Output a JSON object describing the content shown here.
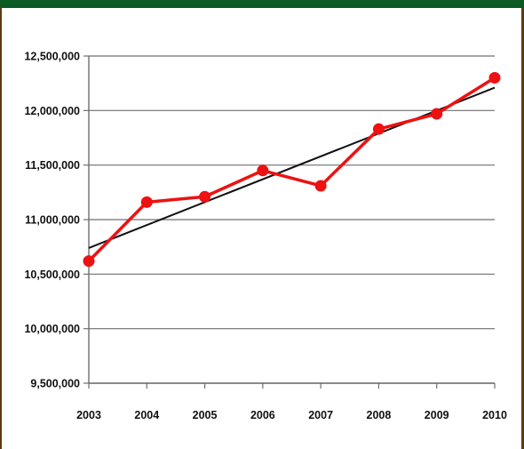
{
  "theme": {
    "header_color": "#0b5a23",
    "frame_color": "#5a3d12",
    "series_color": "#ee1111",
    "trend_color": "#111111",
    "grid_color": "#6f6f6f"
  },
  "chart_data": {
    "type": "line",
    "title": "",
    "xlabel": "",
    "ylabel": "",
    "categories": [
      "2003",
      "2004",
      "2005",
      "2006",
      "2007",
      "2008",
      "2009",
      "2010"
    ],
    "ylim": [
      9500000,
      12500000
    ],
    "yticks": [
      9500000,
      10000000,
      10500000,
      11000000,
      11500000,
      12000000,
      12500000
    ],
    "ytick_labels": [
      "9,500,000",
      "10,000,000",
      "10,500,000",
      "11,000,000",
      "11,500,000",
      "12,000,000",
      "12,500,000"
    ],
    "grid": "horizontal",
    "legend": "none",
    "series": [
      {
        "values": [
          10620000,
          11160000,
          11210000,
          11450000,
          11310000,
          11830000,
          11970000,
          12300000
        ],
        "style": "line-with-markers"
      }
    ],
    "trendline": {
      "type": "linear",
      "start": 10740000,
      "end": 12210000
    }
  }
}
